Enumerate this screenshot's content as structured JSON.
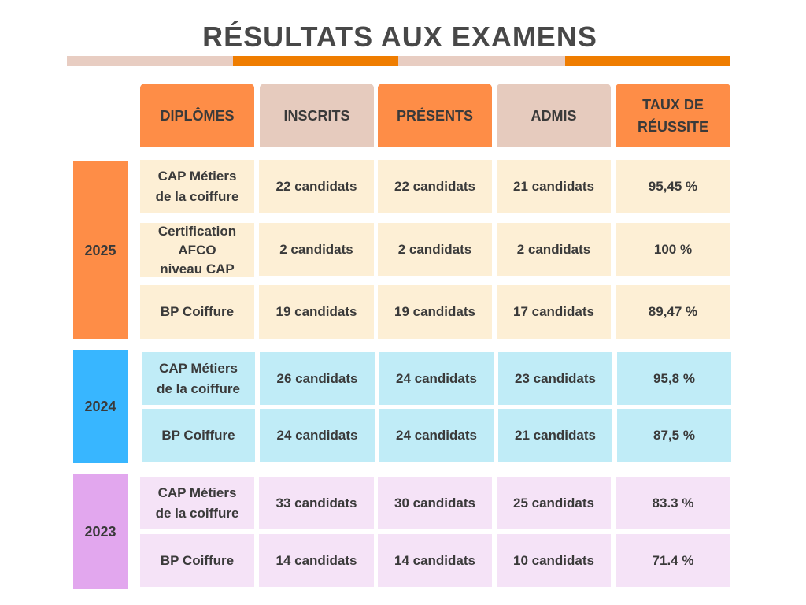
{
  "title": "RÉSULTATS AUX EXAMENS",
  "colors": {
    "title": "#484848",
    "header_orange": "#fe8d47",
    "header_beige": "#e6cbbe",
    "bar_beige": "#e8cdc2",
    "bar_orange": "#ef7d00",
    "year_2025": "#fe8d47",
    "year_2024": "#38b6ff",
    "year_2023": "#e2a7ee",
    "rows_2025": "#fdefd5",
    "rows_2024": "#c0ecf7",
    "rows_2023": "#f5e3f7"
  },
  "headers": {
    "diplomes": "DIPLÔMES",
    "inscrits": "INSCRITS",
    "presents": "PRÉSENTS",
    "admis": "ADMIS",
    "taux_line1": "TAUX DE",
    "taux_line2": "RÉUSSITE"
  },
  "years": {
    "y2025": {
      "label": "2025",
      "rows": [
        {
          "diplome_line1": "CAP Métiers",
          "diplome_line2": "de la coiffure",
          "inscrits": "22 candidats",
          "presents": "22 candidats",
          "admis": "21 candidats",
          "taux": "95,45 %"
        },
        {
          "diplome_line1": "Certification",
          "diplome_line2": "AFCO",
          "diplome_line3": "niveau CAP",
          "inscrits": "2 candidats",
          "presents": "2 candidats",
          "admis": "2 candidats",
          "taux": "100 %"
        },
        {
          "diplome_line1": "BP Coiffure",
          "inscrits": "19 candidats",
          "presents": "19 candidats",
          "admis": "17 candidats",
          "taux": "89,47 %"
        }
      ]
    },
    "y2024": {
      "label": "2024",
      "rows": [
        {
          "diplome_line1": "CAP Métiers",
          "diplome_line2": "de la coiffure",
          "inscrits": "26 candidats",
          "presents": "24 candidats",
          "admis": "23 candidats",
          "taux": "95,8 %"
        },
        {
          "diplome_line1": "BP Coiffure",
          "inscrits": "24 candidats",
          "presents": "24 candidats",
          "admis": "21 candidats",
          "taux": "87,5 %"
        }
      ]
    },
    "y2023": {
      "label": "2023",
      "rows": [
        {
          "diplome_line1": "CAP Métiers",
          "diplome_line2": "de la coiffure",
          "inscrits": "33 candidats",
          "presents": "30 candidats",
          "admis": "25 candidats",
          "taux": "83.3 %"
        },
        {
          "diplome_line1": "BP Coiffure",
          "inscrits": "14 candidats",
          "presents": "14 candidats",
          "admis": "10 candidats",
          "taux": "71.4 %"
        }
      ]
    }
  }
}
